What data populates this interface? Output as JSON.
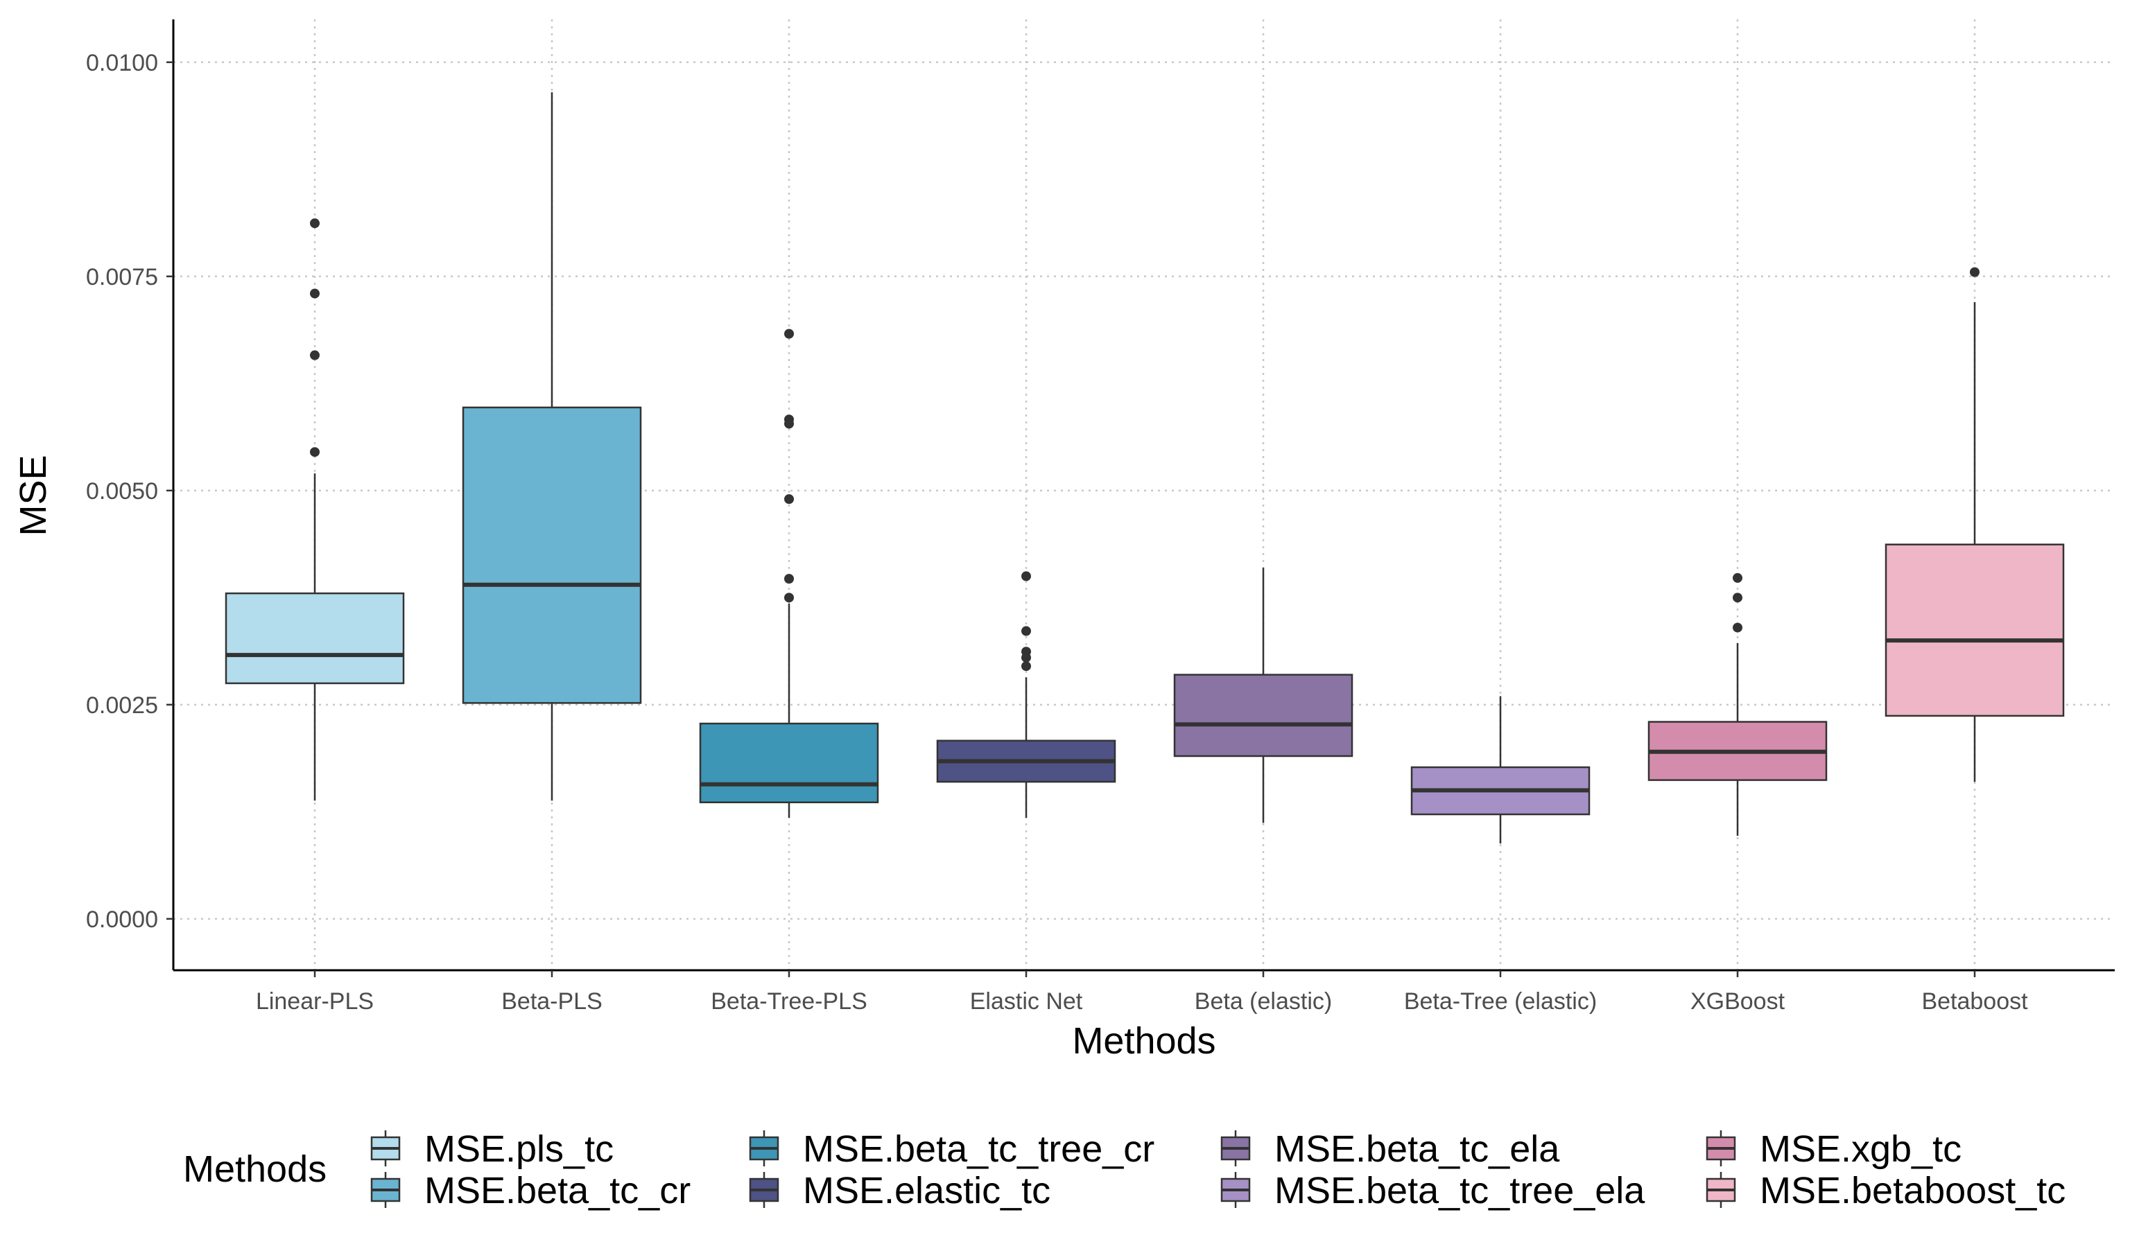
{
  "chart_data": {
    "type": "boxplot",
    "xlabel": "Methods",
    "ylabel": "MSE",
    "ylim": [
      -0.0006,
      0.0105
    ],
    "yticks": [
      {
        "value": 0.0,
        "label": "0.0000"
      },
      {
        "value": 0.0025,
        "label": "0.0025"
      },
      {
        "value": 0.005,
        "label": "0.0050"
      },
      {
        "value": 0.0075,
        "label": "0.0075"
      },
      {
        "value": 0.01,
        "label": "0.0100"
      }
    ],
    "grid": true,
    "legend": {
      "title": "Methods",
      "position": "bottom",
      "columns": 4
    },
    "categories": [
      "Linear-PLS",
      "Beta-PLS",
      "Beta-Tree-PLS",
      "Elastic Net",
      "Beta (elastic)",
      "Beta-Tree (elastic)",
      "XGBoost",
      "Betaboost"
    ],
    "series": [
      {
        "name": "MSE.pls_tc",
        "category": "Linear-PLS",
        "color": "#b3dcec",
        "whisker_low": 0.00138,
        "q1": 0.00275,
        "median": 0.00308,
        "q3": 0.0038,
        "whisker_high": 0.0052,
        "outliers": [
          0.00545,
          0.00658,
          0.0073,
          0.00812
        ]
      },
      {
        "name": "MSE.beta_tc_cr",
        "category": "Beta-PLS",
        "color": "#6ab4d1",
        "whisker_low": 0.00138,
        "q1": 0.00252,
        "median": 0.0039,
        "q3": 0.00597,
        "whisker_high": 0.00965,
        "outliers": []
      },
      {
        "name": "MSE.beta_tc_tree_cr",
        "category": "Beta-Tree-PLS",
        "color": "#3d96b6",
        "whisker_low": 0.00118,
        "q1": 0.00136,
        "median": 0.00157,
        "q3": 0.00228,
        "whisker_high": 0.00368,
        "outliers": [
          0.00375,
          0.00397,
          0.0049,
          0.00578,
          0.00583,
          0.00683
        ]
      },
      {
        "name": "MSE.elastic_tc",
        "category": "Elastic Net",
        "color": "#4e5284",
        "whisker_low": 0.00118,
        "q1": 0.0016,
        "median": 0.00184,
        "q3": 0.00208,
        "whisker_high": 0.00282,
        "outliers": [
          0.00295,
          0.00305,
          0.00312,
          0.00336,
          0.004
        ]
      },
      {
        "name": "MSE.beta_tc_ela",
        "category": "Beta (elastic)",
        "color": "#8974a4",
        "whisker_low": 0.00112,
        "q1": 0.0019,
        "median": 0.00227,
        "q3": 0.00285,
        "whisker_high": 0.0041,
        "outliers": []
      },
      {
        "name": "MSE.beta_tc_tree_ela",
        "category": "Beta-Tree (elastic)",
        "color": "#a591c6",
        "whisker_low": 0.00088,
        "q1": 0.00122,
        "median": 0.0015,
        "q3": 0.00177,
        "whisker_high": 0.0026,
        "outliers": []
      },
      {
        "name": "MSE.xgb_tc",
        "category": "XGBoost",
        "color": "#d48cac",
        "whisker_low": 0.00097,
        "q1": 0.00162,
        "median": 0.00195,
        "q3": 0.0023,
        "whisker_high": 0.00322,
        "outliers": [
          0.0034,
          0.00375,
          0.00398
        ]
      },
      {
        "name": "MSE.betaboost_tc",
        "category": "Betaboost",
        "color": "#eeb6c6",
        "whisker_low": 0.0016,
        "q1": 0.00237,
        "median": 0.00325,
        "q3": 0.00437,
        "whisker_high": 0.0072,
        "outliers": [
          0.00755
        ]
      }
    ]
  }
}
